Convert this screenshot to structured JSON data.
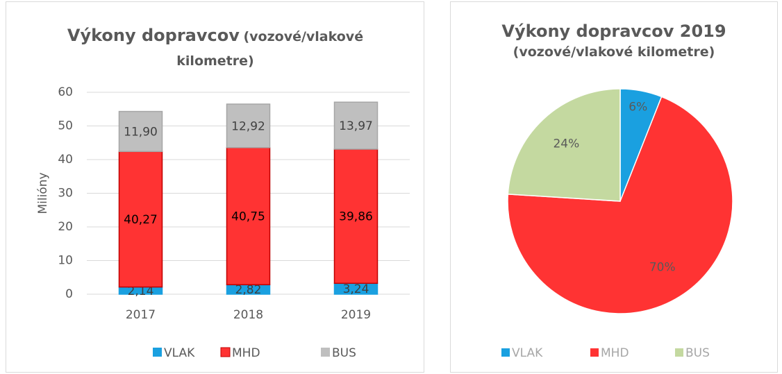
{
  "chart_data": [
    {
      "type": "bar",
      "stacked": true,
      "title": "Výkony dopravcov",
      "subtitle": "(vozové/vlakové kilometre)",
      "ylabel": "Milióny",
      "categories": [
        "2017",
        "2018",
        "2019"
      ],
      "series": [
        {
          "name": "VLAK",
          "color": "#1aa0e0",
          "values": [
            2.14,
            2.82,
            3.24
          ],
          "value_labels": [
            "2,14",
            "2,82",
            "3,24"
          ]
        },
        {
          "name": "MHD",
          "color": "#ff3333",
          "values": [
            40.27,
            40.75,
            39.86
          ],
          "value_labels": [
            "40,27",
            "40,75",
            "39,86"
          ]
        },
        {
          "name": "BUS",
          "color": "#bfbfbf",
          "values": [
            11.9,
            12.92,
            13.97
          ],
          "value_labels": [
            "11,90",
            "12,92",
            "13,97"
          ]
        }
      ],
      "ylim": [
        0,
        60
      ],
      "yticks": [
        0,
        10,
        20,
        30,
        40,
        50,
        60
      ],
      "grid": true,
      "legend": "bottom"
    },
    {
      "type": "pie",
      "title": "Výkony dopravcov 2019",
      "subtitle": "(vozové/vlakové kilometre)",
      "categories": [
        "VLAK",
        "MHD",
        "BUS"
      ],
      "values": [
        6,
        70,
        24
      ],
      "value_labels": [
        "6%",
        "70%",
        "24%"
      ],
      "colors": [
        "#1aa0e0",
        "#ff3333",
        "#c4d9a0"
      ],
      "legend": "bottom"
    }
  ]
}
